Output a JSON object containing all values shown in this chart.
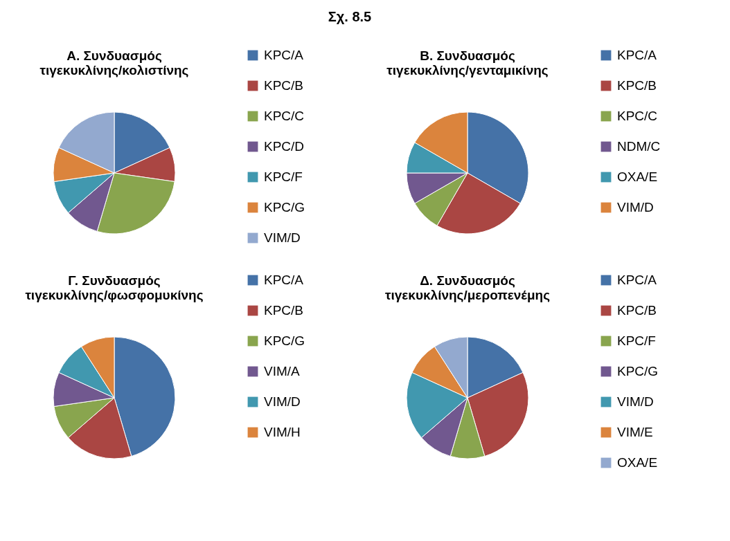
{
  "chart_data": [
    {
      "type": "other",
      "title": "Σχ. 8.5"
    },
    {
      "type": "pie",
      "title": "Α. Συνδυασμός τιγεκυκλίνης/κολιστίνης",
      "legend": "right",
      "categories": [
        "KPC/A",
        "KPC/B",
        "KPC/C",
        "KPC/D",
        "KPC/F",
        "KPC/G",
        "VIM/D"
      ],
      "values": [
        18.18,
        9.09,
        27.27,
        9.09,
        9.09,
        9.09,
        18.18
      ],
      "colors": [
        "#4572a7",
        "#aa4643",
        "#89a54e",
        "#71588f",
        "#4198af",
        "#db843d",
        "#93a9cf"
      ]
    },
    {
      "type": "pie",
      "title": "Β. Συνδυασμός τιγεκυκλίνης/γενταμικίνης",
      "legend": "right",
      "categories": [
        "KPC/A",
        "KPC/B",
        "KPC/C",
        "NDM/C",
        "OXA/E",
        "VIM/D"
      ],
      "values": [
        33.33,
        25,
        8.33,
        8.33,
        8.33,
        16.67
      ],
      "colors": [
        "#4572a7",
        "#aa4643",
        "#89a54e",
        "#71588f",
        "#4198af",
        "#db843d"
      ]
    },
    {
      "type": "pie",
      "title": "Γ. Συνδυασμός τιγεκυκλίνης/φωσφομυκίνης",
      "legend": "right",
      "categories": [
        "KPC/A",
        "KPC/B",
        "KPC/G",
        "VIM/A",
        "VIM/D",
        "VIM/H"
      ],
      "values": [
        45.45,
        18.18,
        9.09,
        9.09,
        9.09,
        9.09
      ],
      "colors": [
        "#4572a7",
        "#aa4643",
        "#89a54e",
        "#71588f",
        "#4198af",
        "#db843d"
      ]
    },
    {
      "type": "pie",
      "title": "Δ. Συνδυασμός τιγεκυκλίνης/μεροπενέμης",
      "legend": "right",
      "categories": [
        "KPC/A",
        "KPC/B",
        "KPC/F",
        "KPC/G",
        "VIM/D",
        "VIM/E",
        "OXA/E"
      ],
      "values": [
        18.18,
        27.27,
        9.09,
        9.09,
        18.18,
        9.09,
        9.09
      ],
      "colors": [
        "#4572a7",
        "#aa4643",
        "#89a54e",
        "#71588f",
        "#4198af",
        "#db843d",
        "#93a9cf"
      ]
    }
  ]
}
